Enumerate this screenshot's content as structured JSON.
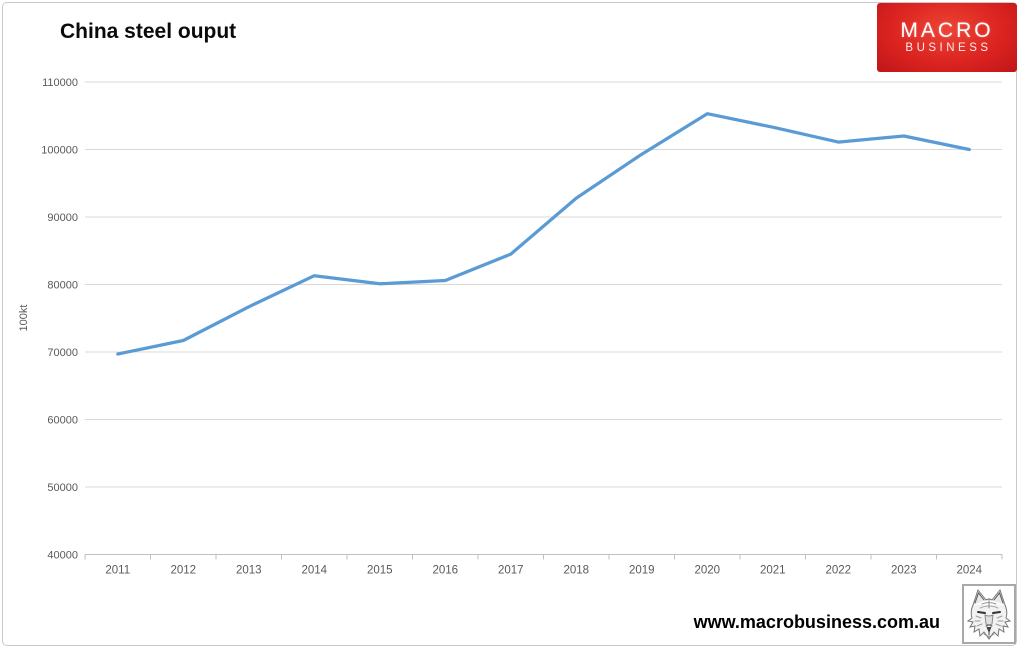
{
  "page": {
    "footer_url": "www.macrobusiness.com.au"
  },
  "logo": {
    "line1": "MACRO",
    "line2": "BUSINESS",
    "bg_color": "#dc2420",
    "wolf_icon": "wolf-head-sketch"
  },
  "chart_data": {
    "type": "line",
    "title": "China steel ouput",
    "xlabel": "",
    "ylabel": "100kt",
    "categories": [
      "2011",
      "2012",
      "2013",
      "2014",
      "2015",
      "2016",
      "2017",
      "2018",
      "2019",
      "2020",
      "2021",
      "2022",
      "2023",
      "2024"
    ],
    "series": [
      {
        "name": "China steel output",
        "color": "#5B9BD5",
        "values": [
          69700,
          71700,
          76700,
          81300,
          80100,
          80600,
          84500,
          92800,
          99300,
          105300,
          103300,
          101100,
          102000,
          100000
        ]
      }
    ],
    "ylim": [
      40000,
      110000
    ],
    "yticks": [
      40000,
      50000,
      60000,
      70000,
      80000,
      90000,
      100000,
      110000
    ],
    "grid": true,
    "legend_position": "none",
    "gridline_color": "#d9d9d9",
    "axis_line_color": "#bfbfbf",
    "axis_text_color": "#595959"
  }
}
